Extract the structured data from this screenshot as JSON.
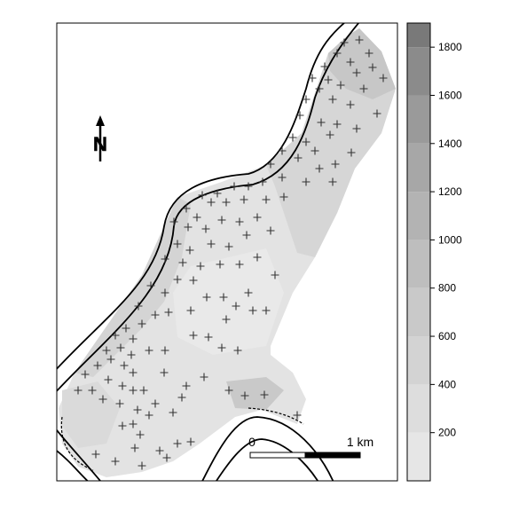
{
  "north_arrow": {
    "letter": "N"
  },
  "scale_bar": {
    "start_label": "0",
    "end_label": "1 km"
  },
  "legend": {
    "breaks": [
      0,
      200,
      400,
      600,
      800,
      1000,
      1200,
      1400,
      1600,
      1800,
      1900
    ],
    "tick_labels": [
      "200",
      "400",
      "600",
      "800",
      "1000",
      "1200",
      "1400",
      "1600",
      "1800"
    ],
    "class_colors": [
      "#e6e6e6",
      "#dddddd",
      "#d3d3d3",
      "#c9c9c9",
      "#bebebe",
      "#b3b3b3",
      "#a7a7a7",
      "#9a9a9a",
      "#8b8b8b",
      "#797979"
    ]
  },
  "colors": {
    "frame": "#000000",
    "contour": "#000000",
    "sample_marker": "#333333"
  }
}
